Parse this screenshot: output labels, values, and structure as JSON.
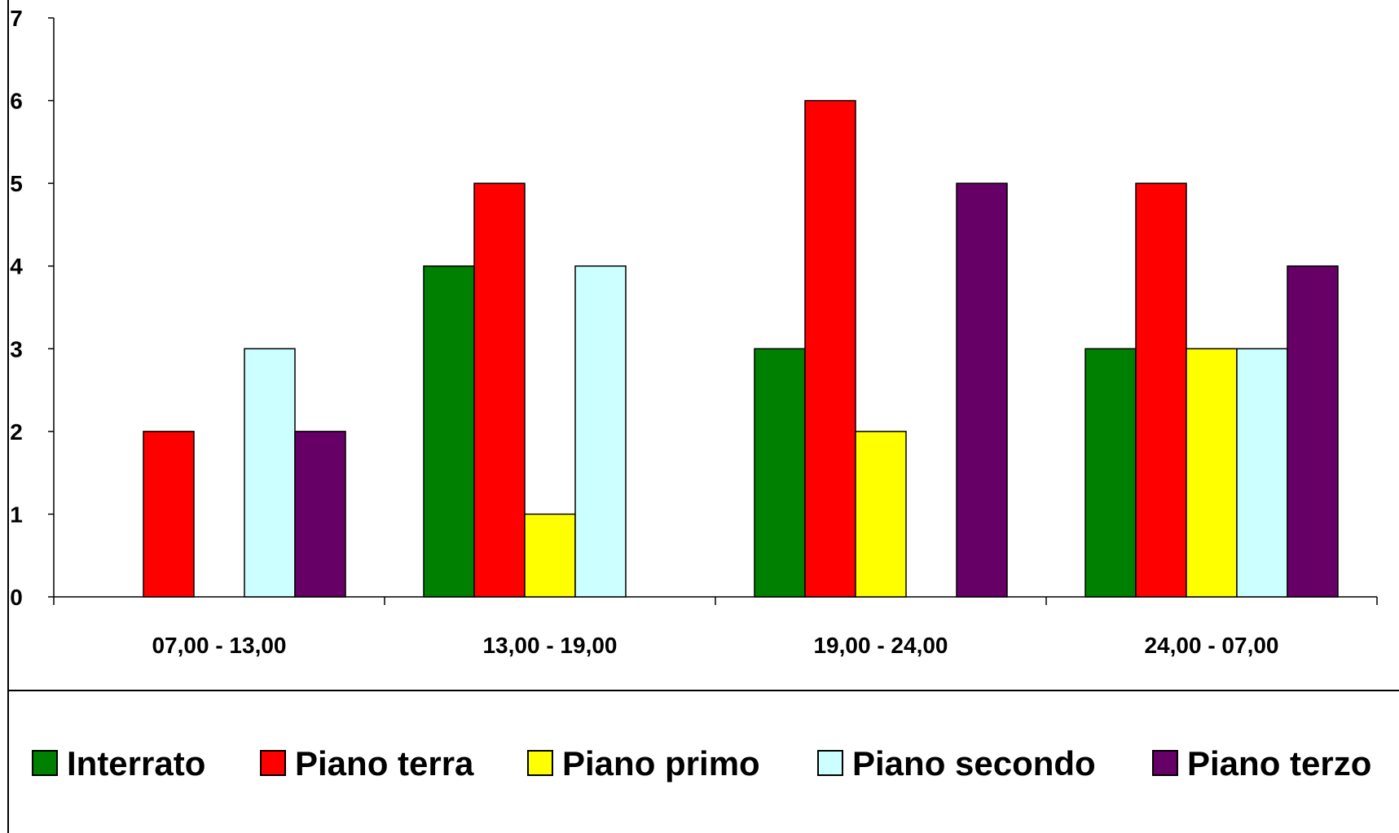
{
  "chart_data": {
    "type": "bar",
    "categories": [
      "07,00 - 13,00",
      "13,00 - 19,00",
      "19,00 - 24,00",
      "24,00 - 07,00"
    ],
    "series": [
      {
        "name": "Interrato",
        "color": "#008000",
        "values": [
          0,
          4,
          3,
          3
        ]
      },
      {
        "name": "Piano terra",
        "color": "#FF0000",
        "values": [
          2,
          5,
          6,
          5
        ]
      },
      {
        "name": "Piano primo",
        "color": "#FFFF00",
        "values": [
          0,
          1,
          2,
          3
        ]
      },
      {
        "name": "Piano secondo",
        "color": "#CCFFFF",
        "values": [
          3,
          4,
          0,
          3
        ]
      },
      {
        "name": "Piano terzo",
        "color": "#660066",
        "values": [
          2,
          0,
          5,
          4
        ]
      }
    ],
    "ylim": [
      0,
      7
    ],
    "yticks": [
      "0",
      "1",
      "2",
      "3",
      "4",
      "5",
      "6",
      "7"
    ],
    "title": "",
    "xlabel": "",
    "ylabel": "",
    "grid": false,
    "legend_position": "bottom"
  }
}
